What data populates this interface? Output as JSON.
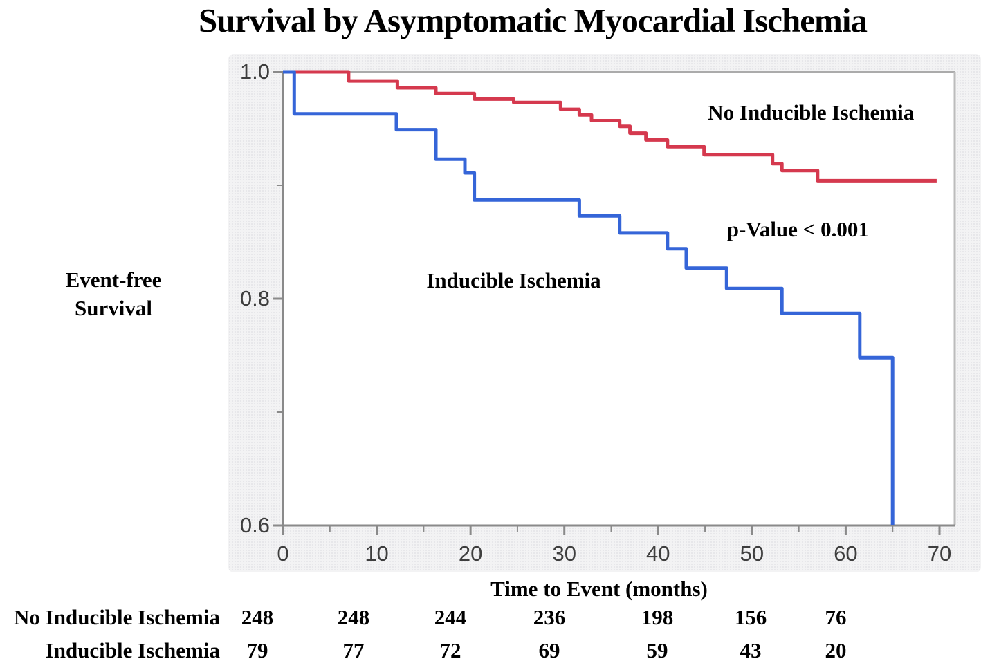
{
  "chart_data": {
    "type": "line",
    "chart_style": "kaplan-meier-step",
    "title": "Survival by Asymptomatic Myocardial Ischemia",
    "xlabel": "Time to Event (months)",
    "ylabel": "Event-free Survival",
    "ylabel_display": "Event-free\nSurvival",
    "xlim": [
      0,
      70
    ],
    "ylim": [
      0.6,
      1.0
    ],
    "grid": false,
    "legend_position": "inline-annotations",
    "x_major_ticks": [
      {
        "value": 0,
        "label": "0"
      },
      {
        "value": 10,
        "label": "10"
      },
      {
        "value": 20,
        "label": "20"
      },
      {
        "value": 30,
        "label": "30"
      },
      {
        "value": 40,
        "label": "40"
      },
      {
        "value": 50,
        "label": "50"
      },
      {
        "value": 60,
        "label": "60"
      },
      {
        "value": 70,
        "label": "70"
      }
    ],
    "x_minor_ticks": [
      5,
      15,
      25,
      35,
      45,
      55,
      65
    ],
    "y_major_ticks": [
      {
        "value": 1.0,
        "label": "1.0"
      },
      {
        "value": 0.8,
        "label": "0.8"
      },
      {
        "value": 0.6,
        "label": "0.6"
      }
    ],
    "y_minor_ticks": [
      0.9,
      0.7
    ],
    "annotations": [
      {
        "text": "No Inducible Ischemia",
        "x_months": 56.3,
        "y_survival": 0.964
      },
      {
        "text": "p-Value < 0.001",
        "x_months": 54.9,
        "y_survival": 0.861
      },
      {
        "text": "Inducible Ischemia",
        "x_months": 24.6,
        "y_survival": 0.816
      }
    ],
    "series": [
      {
        "name": "No Inducible Ischemia",
        "color": "#d5394e",
        "steps": [
          [
            0,
            1.0
          ],
          [
            7,
            0.992
          ],
          [
            12.2,
            0.986
          ],
          [
            16.3,
            0.981
          ],
          [
            20.4,
            0.976
          ],
          [
            24.6,
            0.973
          ],
          [
            29.6,
            0.967
          ],
          [
            31.6,
            0.962
          ],
          [
            32.9,
            0.957
          ],
          [
            35.9,
            0.952
          ],
          [
            37,
            0.946
          ],
          [
            38.7,
            0.94
          ],
          [
            41,
            0.934
          ],
          [
            44.9,
            0.927
          ],
          [
            52.2,
            0.919
          ],
          [
            53.2,
            0.913
          ],
          [
            57,
            0.904
          ]
        ],
        "end_month": 69.7
      },
      {
        "name": "Inducible Ischemia",
        "color": "#3565d8",
        "steps": [
          [
            0,
            1.0
          ],
          [
            1.2,
            0.963
          ],
          [
            12.1,
            0.949
          ],
          [
            16.3,
            0.923
          ],
          [
            19.4,
            0.911
          ],
          [
            20.4,
            0.887
          ],
          [
            31.6,
            0.873
          ],
          [
            35.9,
            0.858
          ],
          [
            41,
            0.844
          ],
          [
            43,
            0.827
          ],
          [
            47.3,
            0.809
          ],
          [
            53.2,
            0.787
          ],
          [
            61.5,
            0.748
          ],
          [
            65,
            0.6
          ]
        ],
        "end_month": 65
      }
    ],
    "at_risk_table": {
      "rows": [
        {
          "label": "No Inducible Ischemia",
          "counts": [
            "248",
            "248",
            "244",
            "236",
            "198",
            "156",
            "76"
          ]
        },
        {
          "label": "Inducible Ischemia",
          "counts": [
            "79",
            "77",
            "72",
            "69",
            "59",
            "43",
            "20"
          ]
        }
      ]
    },
    "colors": {
      "no_inducible_curve": "#d5394e",
      "inducible_curve": "#3565d8",
      "axis": "#8a8a8a",
      "plot_border": "#ababab",
      "panel_background": "#f3f3f4",
      "tick_label": "#3e3e3e"
    }
  }
}
